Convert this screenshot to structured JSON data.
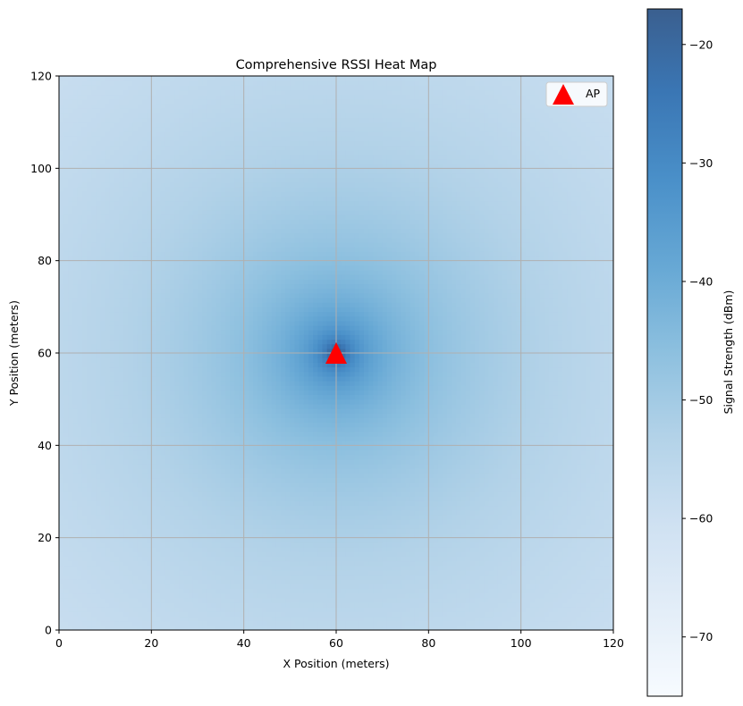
{
  "chart_data": {
    "type": "heatmap",
    "title": "Comprehensive RSSI Heat Map",
    "xlabel": "X Position (meters)",
    "ylabel": "Y Position (meters)",
    "xlim": [
      0,
      120
    ],
    "ylim": [
      0,
      120
    ],
    "xticks": [
      0,
      20,
      40,
      60,
      80,
      100,
      120
    ],
    "yticks": [
      0,
      20,
      40,
      60,
      80,
      100,
      120
    ],
    "grid": true,
    "colormap": "Blues",
    "colorbar": {
      "label": "Signal Strength (dBm)",
      "range": [
        -75,
        -17
      ],
      "ticks": [
        -70,
        -60,
        -50,
        -40,
        -30,
        -20
      ],
      "tick_labels": [
        "−70",
        "−60",
        "−50",
        "−40",
        "−30",
        "−20"
      ]
    },
    "points": [
      {
        "name": "AP",
        "x": 60,
        "y": 60,
        "marker": "triangle",
        "color": "#ff0000"
      }
    ],
    "legend": {
      "position": "top-right",
      "entries": [
        "AP"
      ]
    },
    "colors": {
      "low": "#f7fbff",
      "high": "#3a5f8f",
      "grid": "#b0b0b0",
      "marker": "#ff0000"
    }
  }
}
